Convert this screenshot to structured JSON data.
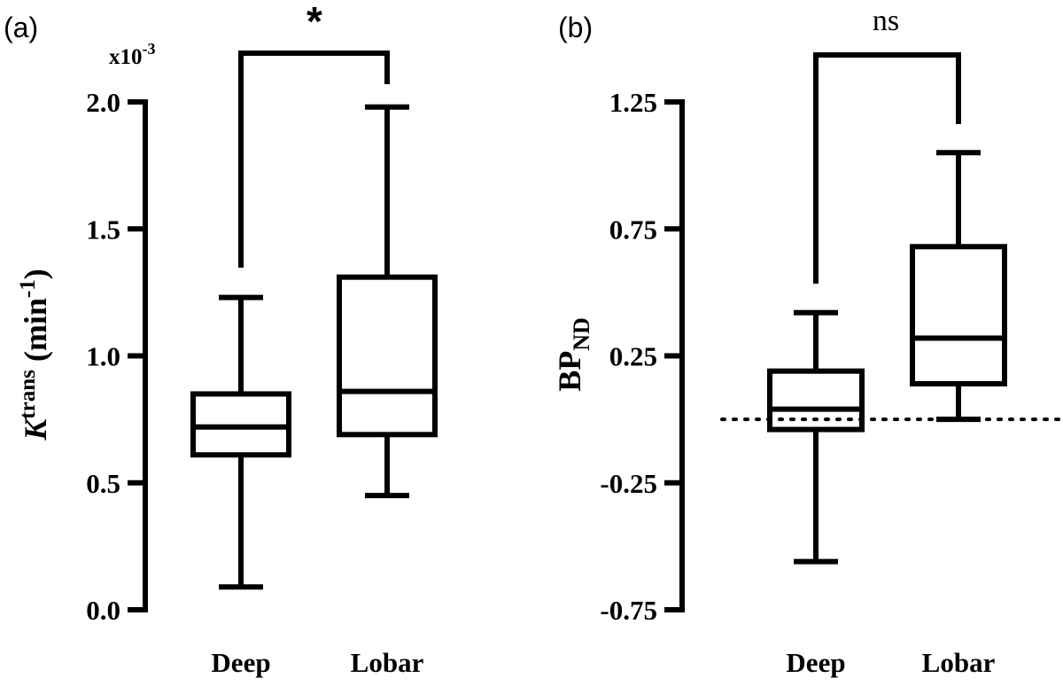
{
  "chart_data": [
    {
      "panel": "(a)",
      "type": "box",
      "categories": [
        "Deep",
        "Lobar"
      ],
      "scale_label": "x10",
      "scale_exponent": "-3",
      "ylabel_main": "K",
      "ylabel_sup": "trans",
      "ylabel_unit_open": " (min",
      "ylabel_unit_sup": "-1",
      "ylabel_unit_close": ")",
      "ylim": [
        0.0,
        2.0
      ],
      "yticks": [
        0.0,
        0.5,
        1.0,
        1.5,
        2.0
      ],
      "ytick_labels": [
        "0.0",
        "0.5",
        "1.0",
        "1.5",
        "2.0"
      ],
      "boxes": [
        {
          "name": "Deep",
          "min": 0.09,
          "q1": 0.61,
          "median": 0.72,
          "q3": 0.85,
          "max": 1.23
        },
        {
          "name": "Lobar",
          "min": 0.45,
          "q1": 0.69,
          "median": 0.86,
          "q3": 1.31,
          "max": 1.98
        }
      ],
      "significance": "*"
    },
    {
      "panel": "(b)",
      "type": "box",
      "categories": [
        "Deep",
        "Lobar"
      ],
      "ylabel_main": "BP",
      "ylabel_sub": "ND",
      "ylim": [
        -0.75,
        1.25
      ],
      "yticks": [
        -0.75,
        -0.25,
        0.25,
        0.75,
        1.25
      ],
      "ytick_labels": [
        "-0.75",
        "-0.25",
        "0.25",
        "0.75",
        "1.25"
      ],
      "reference_line": 0.0,
      "boxes": [
        {
          "name": "Deep",
          "min": -0.56,
          "q1": -0.04,
          "median": 0.04,
          "q3": 0.19,
          "max": 0.42
        },
        {
          "name": "Lobar",
          "min": 0.0,
          "q1": 0.14,
          "median": 0.32,
          "q3": 0.68,
          "max": 1.05
        }
      ],
      "significance": "ns"
    }
  ]
}
